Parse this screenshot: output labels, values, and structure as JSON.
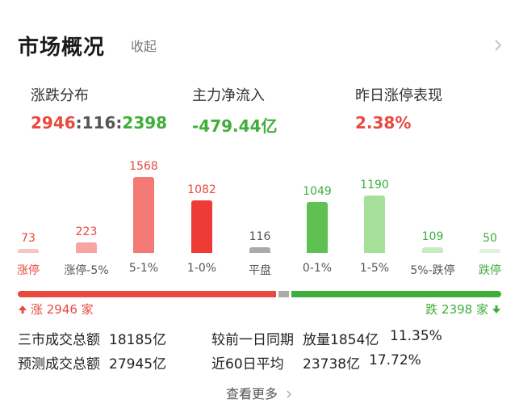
{
  "header": {
    "title": "市场概况",
    "collapse_label": "收起"
  },
  "stats": [
    {
      "label": "涨跌分布",
      "up": "2946",
      "sep1": ":",
      "flat": "116",
      "sep2": ":",
      "down": "2398"
    },
    {
      "label": "主力净流入",
      "value": "-479.44亿"
    },
    {
      "label": "昨日涨停表现",
      "value": "2.38%"
    }
  ],
  "chart_data": {
    "type": "bar",
    "categories": [
      "涨停",
      "涨停-5%",
      "5-1%",
      "1-0%",
      "平盘",
      "0-1%",
      "1-5%",
      "5%-跌停",
      "跌停"
    ],
    "values": [
      73,
      223,
      1568,
      1082,
      116,
      1049,
      1190,
      109,
      50
    ],
    "value_labels": [
      "73",
      "223",
      "1568",
      "1082",
      "116",
      "1049",
      "1190",
      "109",
      "50"
    ],
    "colors": [
      "#f7c5c3",
      "#f6a5a2",
      "#f47a75",
      "#ee3b35",
      "#aaaaaa",
      "#5ec152",
      "#a5df99",
      "#c6ecbf",
      "#dff3dc"
    ],
    "label_colors": [
      "#e8493f",
      "#e8493f",
      "#e8493f",
      "#e8493f",
      "#555555",
      "#3fae3a",
      "#3fae3a",
      "#3fae3a",
      "#3fae3a"
    ],
    "category_colors": [
      "#e8493f",
      "#555555",
      "#555555",
      "#555555",
      "#555555",
      "#555555",
      "#555555",
      "#555555",
      "#3fae3a"
    ]
  },
  "ratio_bar": {
    "up": 2946,
    "flat": 116,
    "down": 2398
  },
  "up_label": "涨 2946 家",
  "down_label": "跌 2398 家",
  "turnover": {
    "three_label": "三市成交总额",
    "three_value": "18185亿",
    "compare_label": "较前一日同期",
    "compare_value": "放量1854亿",
    "compare_pct": "11.35%",
    "pred_label": "预测成交总额",
    "pred_value": "27945亿",
    "avg_label": "近60日平均",
    "avg_value": "23738亿",
    "avg_pct": "17.72%"
  },
  "more_label": "查看更多",
  "colors": {
    "up": "#e8493f",
    "down": "#3fae3a",
    "flat": "#aaaaaa"
  }
}
